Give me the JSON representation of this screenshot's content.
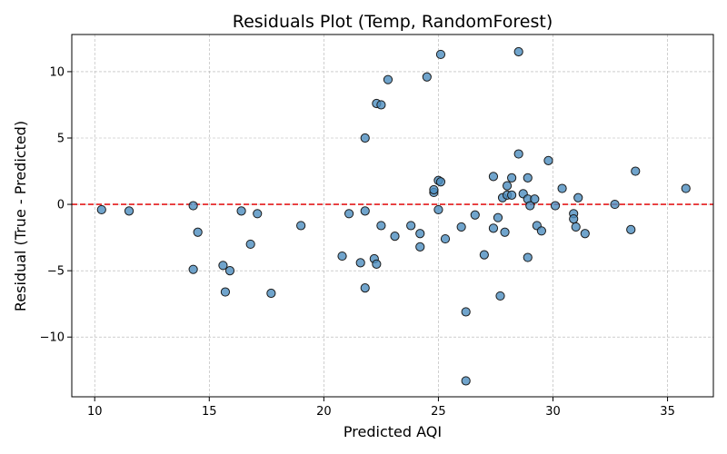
{
  "chart_data": {
    "type": "scatter",
    "title": "Residuals Plot (Temp, RandomForest)",
    "xlabel": "Predicted AQI",
    "ylabel": "Residual (True - Predicted)",
    "xlim": [
      9,
      37
    ],
    "ylim": [
      -14.5,
      12.8
    ],
    "xticks": [
      10,
      15,
      20,
      25,
      30,
      35
    ],
    "yticks": [
      -10,
      -5,
      0,
      5,
      10
    ],
    "ytick_labels": [
      "−10",
      "−5",
      "0",
      "5",
      "10"
    ],
    "grid": true,
    "reference_line": {
      "y": 0,
      "style": "dashed",
      "color": "#e41a1c"
    },
    "marker_color": "#4c8dbf",
    "marker_edge_color": "#1a1a1a",
    "points": [
      {
        "x": 10.3,
        "y": -0.4
      },
      {
        "x": 11.5,
        "y": -0.5
      },
      {
        "x": 14.3,
        "y": -0.1
      },
      {
        "x": 14.5,
        "y": -2.1
      },
      {
        "x": 14.3,
        "y": -4.9
      },
      {
        "x": 15.6,
        "y": -4.6
      },
      {
        "x": 15.9,
        "y": -5.0
      },
      {
        "x": 15.7,
        "y": -6.6
      },
      {
        "x": 16.4,
        "y": -0.5
      },
      {
        "x": 16.8,
        "y": -3.0
      },
      {
        "x": 17.1,
        "y": -0.7
      },
      {
        "x": 17.7,
        "y": -6.7
      },
      {
        "x": 19.0,
        "y": -1.6
      },
      {
        "x": 20.8,
        "y": -3.9
      },
      {
        "x": 21.1,
        "y": -0.7
      },
      {
        "x": 21.6,
        "y": -4.4
      },
      {
        "x": 21.8,
        "y": -0.5
      },
      {
        "x": 21.8,
        "y": -6.3
      },
      {
        "x": 21.8,
        "y": 5.0
      },
      {
        "x": 22.2,
        "y": -4.1
      },
      {
        "x": 22.3,
        "y": -4.5
      },
      {
        "x": 22.3,
        "y": 7.6
      },
      {
        "x": 22.5,
        "y": 7.5
      },
      {
        "x": 22.5,
        "y": -1.6
      },
      {
        "x": 22.8,
        "y": 9.4
      },
      {
        "x": 23.1,
        "y": -2.4
      },
      {
        "x": 23.8,
        "y": -1.6
      },
      {
        "x": 24.2,
        "y": -2.2
      },
      {
        "x": 24.2,
        "y": -3.2
      },
      {
        "x": 24.5,
        "y": 9.6
      },
      {
        "x": 24.8,
        "y": 0.9
      },
      {
        "x": 24.8,
        "y": 1.1
      },
      {
        "x": 25.0,
        "y": 1.8
      },
      {
        "x": 25.1,
        "y": 1.7
      },
      {
        "x": 25.0,
        "y": -0.4
      },
      {
        "x": 25.1,
        "y": 11.3
      },
      {
        "x": 25.3,
        "y": -2.6
      },
      {
        "x": 26.0,
        "y": -1.7
      },
      {
        "x": 26.2,
        "y": -8.1
      },
      {
        "x": 26.2,
        "y": -13.3
      },
      {
        "x": 26.6,
        "y": -0.8
      },
      {
        "x": 27.0,
        "y": -3.8
      },
      {
        "x": 27.4,
        "y": 2.1
      },
      {
        "x": 27.4,
        "y": -1.8
      },
      {
        "x": 27.6,
        "y": -1.0
      },
      {
        "x": 27.7,
        "y": -6.9
      },
      {
        "x": 27.8,
        "y": 0.5
      },
      {
        "x": 27.9,
        "y": -2.1
      },
      {
        "x": 28.0,
        "y": 0.7
      },
      {
        "x": 28.0,
        "y": 1.4
      },
      {
        "x": 28.2,
        "y": 2.0
      },
      {
        "x": 28.2,
        "y": 0.7
      },
      {
        "x": 28.5,
        "y": 11.5
      },
      {
        "x": 28.5,
        "y": 3.8
      },
      {
        "x": 28.7,
        "y": 0.8
      },
      {
        "x": 28.9,
        "y": 2.0
      },
      {
        "x": 28.9,
        "y": 0.4
      },
      {
        "x": 28.9,
        "y": -4.0
      },
      {
        "x": 29.0,
        "y": -0.1
      },
      {
        "x": 29.2,
        "y": 0.4
      },
      {
        "x": 29.3,
        "y": -1.6
      },
      {
        "x": 29.5,
        "y": -2.0
      },
      {
        "x": 29.8,
        "y": 3.3
      },
      {
        "x": 30.1,
        "y": -0.1
      },
      {
        "x": 30.4,
        "y": 1.2
      },
      {
        "x": 30.9,
        "y": -0.7
      },
      {
        "x": 30.9,
        "y": -1.1
      },
      {
        "x": 31.0,
        "y": -1.7
      },
      {
        "x": 31.1,
        "y": 0.5
      },
      {
        "x": 31.4,
        "y": -2.2
      },
      {
        "x": 32.7,
        "y": 0.0
      },
      {
        "x": 33.4,
        "y": -1.9
      },
      {
        "x": 33.6,
        "y": 2.5
      },
      {
        "x": 35.8,
        "y": 1.2
      }
    ]
  }
}
